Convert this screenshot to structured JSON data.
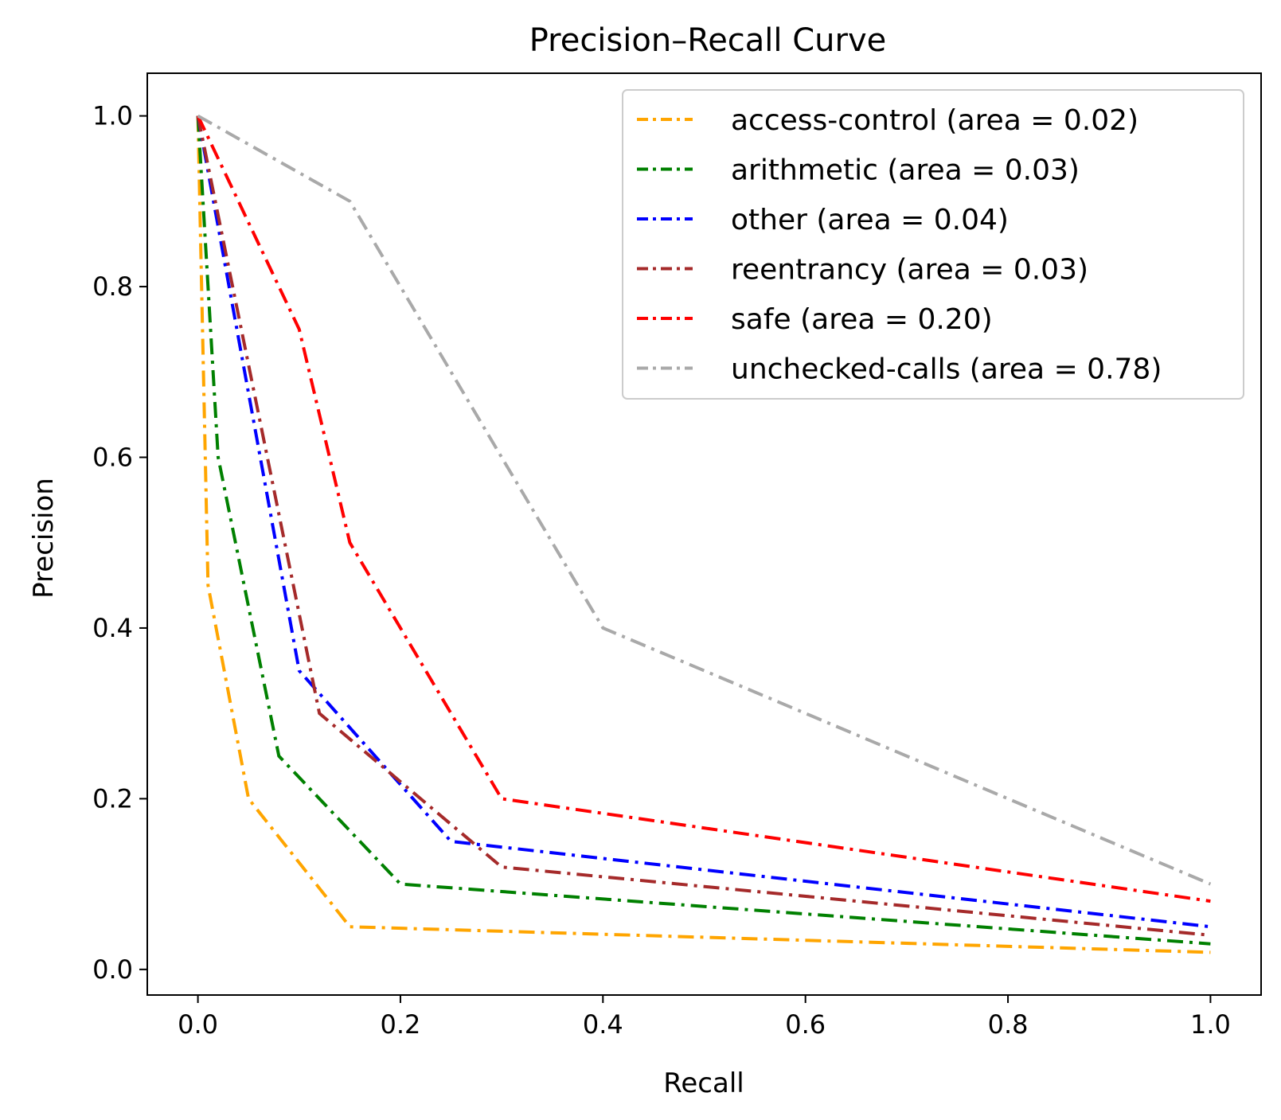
{
  "chart_data": {
    "type": "line",
    "title": "Precision–Recall Curve",
    "xlabel": "Recall",
    "ylabel": "Precision",
    "xlim": [
      -0.05,
      1.05
    ],
    "ylim": [
      -0.03,
      1.05
    ],
    "xticks": [
      0.0,
      0.2,
      0.4,
      0.6,
      0.8,
      1.0
    ],
    "yticks": [
      0.0,
      0.2,
      0.4,
      0.6,
      0.8,
      1.0
    ],
    "xtick_labels": [
      "0.0",
      "0.2",
      "0.4",
      "0.6",
      "0.8",
      "1.0"
    ],
    "ytick_labels": [
      "0.0",
      "0.2",
      "0.4",
      "0.6",
      "0.8",
      "1.0"
    ],
    "grid": false,
    "legend_position": "top-right",
    "line_style": "dash-dot",
    "series": [
      {
        "name": "access-control (area = 0.02)",
        "color": "#ffa500",
        "x": [
          0.0,
          0.01,
          0.05,
          0.15,
          1.0
        ],
        "y": [
          1.0,
          0.45,
          0.2,
          0.05,
          0.02
        ]
      },
      {
        "name": "arithmetic (area = 0.03)",
        "color": "#008000",
        "x": [
          0.0,
          0.02,
          0.08,
          0.2,
          1.0
        ],
        "y": [
          1.0,
          0.6,
          0.25,
          0.1,
          0.03
        ]
      },
      {
        "name": "other (area = 0.04)",
        "color": "#0000ff",
        "x": [
          0.0,
          0.1,
          0.25,
          1.0
        ],
        "y": [
          1.0,
          0.35,
          0.15,
          0.05
        ]
      },
      {
        "name": "reentrancy (area = 0.03)",
        "color": "#a52a2a",
        "x": [
          0.0,
          0.12,
          0.3,
          1.0
        ],
        "y": [
          1.0,
          0.3,
          0.12,
          0.04
        ]
      },
      {
        "name": "safe (area = 0.20)",
        "color": "#ff0000",
        "x": [
          0.0,
          0.1,
          0.15,
          0.3,
          1.0
        ],
        "y": [
          1.0,
          0.75,
          0.5,
          0.2,
          0.08
        ]
      },
      {
        "name": "unchecked-calls (area = 0.78)",
        "color": "#a9a9a9",
        "x": [
          0.0,
          0.15,
          0.3,
          0.4,
          1.0
        ],
        "y": [
          1.0,
          0.9,
          0.6,
          0.4,
          0.1
        ]
      }
    ]
  }
}
